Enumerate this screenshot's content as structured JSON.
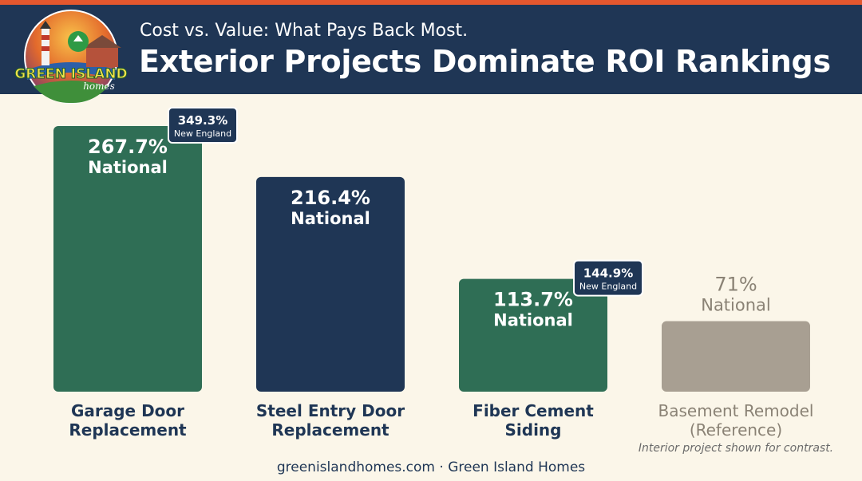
{
  "brand": {
    "name_line1": "GREEN ISLAND",
    "name_line2": "homes"
  },
  "header": {
    "subtitle": "Cost vs. Value: What Pays Back Most.",
    "title": "Exterior Projects Dominate ROI Rankings"
  },
  "colors": {
    "header_bg": "#1f3655",
    "accent_stripe": "#e4572e",
    "green": "#2f6e55",
    "navy": "#1f3655",
    "taupe": "#a89f92",
    "background": "#fbf6e9"
  },
  "chart_data": {
    "type": "bar",
    "categories": [
      "Garage Door Replacement",
      "Steel Entry Door Replacement",
      "Fiber Cement Siding",
      "Basement Remodel (Reference)"
    ],
    "category_lines": [
      [
        "Garage Door",
        "Replacement"
      ],
      [
        "Steel Entry Door",
        "Replacement"
      ],
      [
        "Fiber Cement",
        "Siding"
      ],
      [
        "Basement Remodel",
        "(Reference)"
      ]
    ],
    "series": [
      {
        "name": "National",
        "values": [
          267.7,
          216.4,
          113.7,
          71
        ],
        "labels": [
          "267.7%",
          "216.4%",
          "113.7%",
          "71%"
        ],
        "colors": [
          "#2f6e55",
          "#1f3655",
          "#2f6e55",
          "#a89f92"
        ]
      }
    ],
    "callouts": [
      {
        "category_index": 0,
        "value": 349.3,
        "label": "349.3%",
        "region": "New England"
      },
      {
        "category_index": 2,
        "value": 144.9,
        "label": "144.9%",
        "region": "New England"
      }
    ],
    "ylim": [
      0,
      267.7
    ],
    "grid": false,
    "legend": "none",
    "title": "",
    "xlabel": "",
    "ylabel": ""
  },
  "note": "Interior project shown for contrast.",
  "footer": "greenislandhomes.com · Green Island Homes"
}
